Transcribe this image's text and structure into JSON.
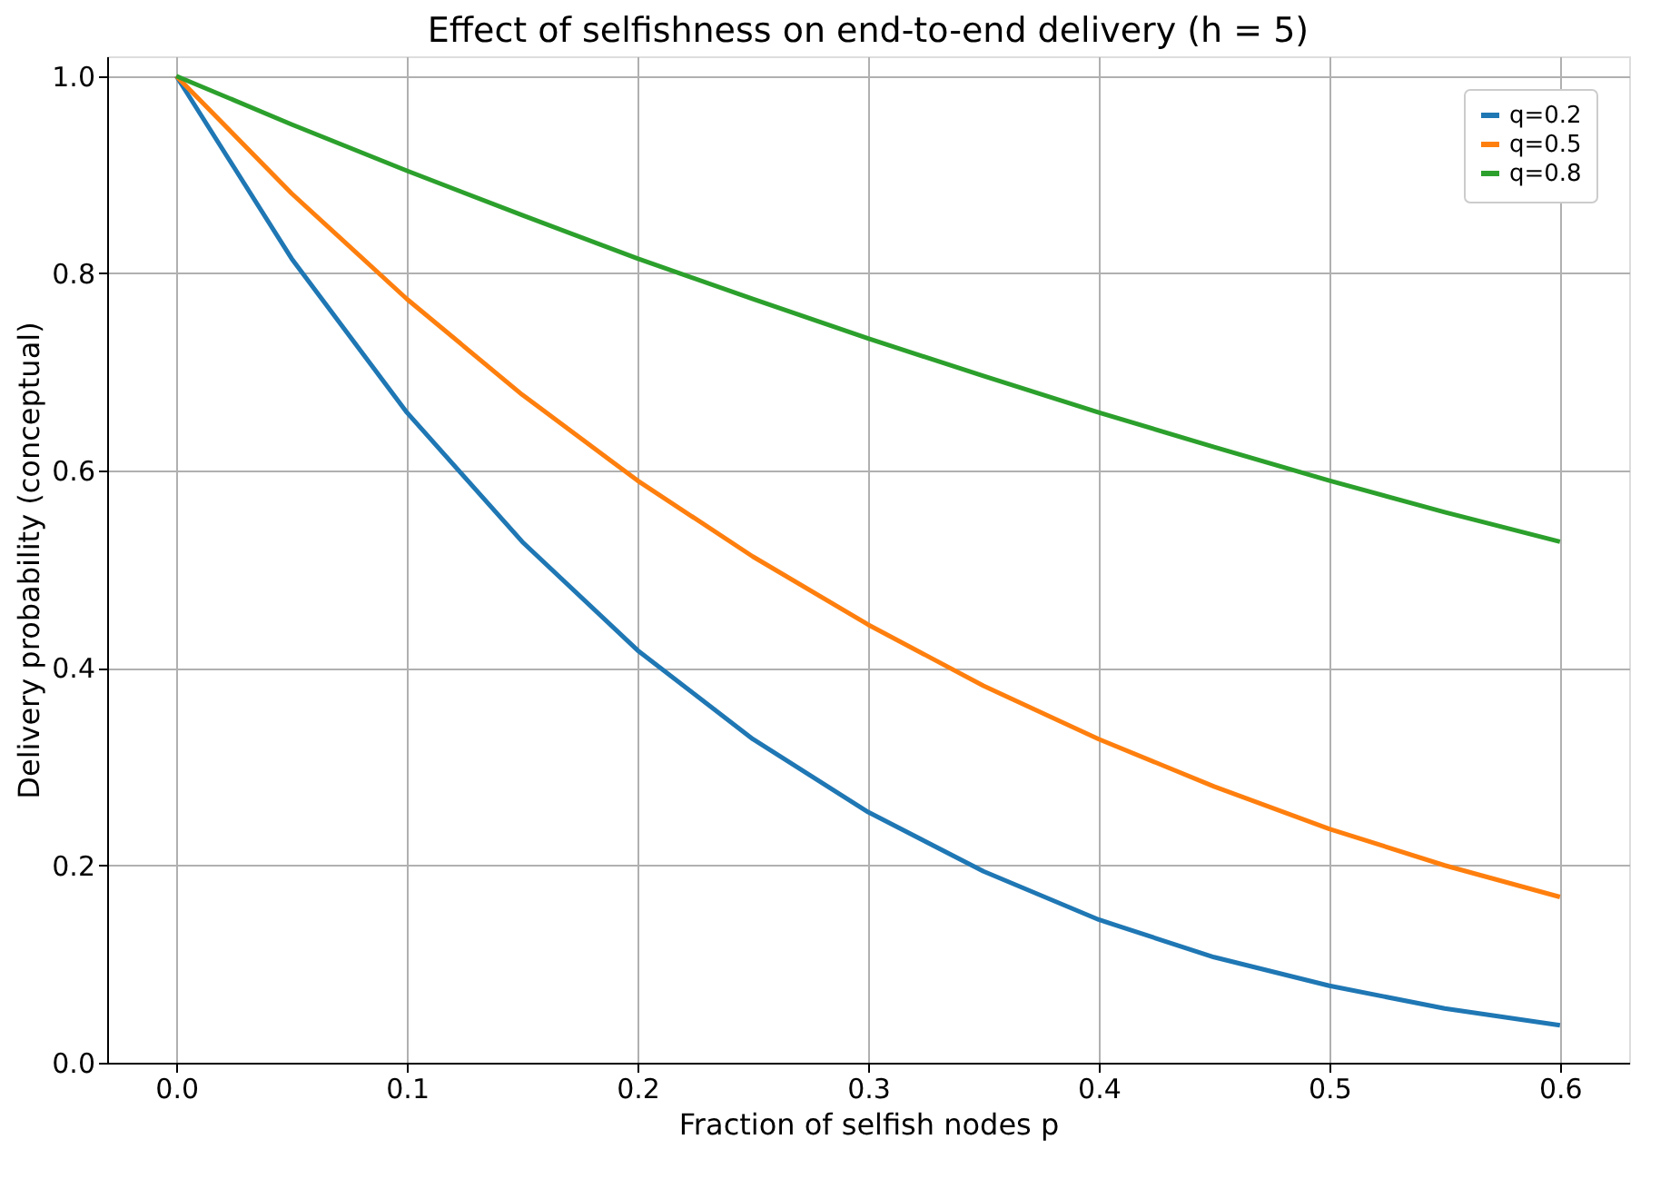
{
  "chart_data": {
    "type": "line",
    "title": "Effect of selfishness on end-to-end delivery (h = 5)",
    "xlabel": "Fraction of selfish nodes p",
    "ylabel": "Delivery probability (conceptual)",
    "x": [
      0,
      0.05,
      0.1,
      0.15,
      0.2,
      0.25,
      0.3,
      0.35,
      0.4,
      0.45,
      0.5,
      0.55,
      0.6
    ],
    "series": [
      {
        "name": "q=0.2",
        "color": "#1f77b4",
        "values": [
          1,
          0.815,
          0.659,
          0.528,
          0.418,
          0.328,
          0.254,
          0.194,
          0.145,
          0.107,
          0.078,
          0.055,
          0.038
        ]
      },
      {
        "name": "q=0.5",
        "color": "#ff7f0e",
        "values": [
          1,
          0.881,
          0.774,
          0.677,
          0.59,
          0.513,
          0.444,
          0.382,
          0.328,
          0.28,
          0.237,
          0.2,
          0.168
        ]
      },
      {
        "name": "q=0.8",
        "color": "#2ca02c",
        "values": [
          1,
          0.951,
          0.904,
          0.859,
          0.815,
          0.774,
          0.734,
          0.696,
          0.659,
          0.624,
          0.59,
          0.558,
          0.528
        ]
      }
    ],
    "xlim": [
      -0.03,
      0.63
    ],
    "ylim": [
      0,
      1.02
    ],
    "xticks": [
      {
        "value": 0,
        "label": "0.0"
      },
      {
        "value": 0.1,
        "label": "0.1"
      },
      {
        "value": 0.2,
        "label": "0.2"
      },
      {
        "value": 0.3,
        "label": "0.3"
      },
      {
        "value": 0.4,
        "label": "0.4"
      },
      {
        "value": 0.5,
        "label": "0.5"
      },
      {
        "value": 0.6,
        "label": "0.6"
      }
    ],
    "yticks": [
      {
        "value": 0,
        "label": "0.0"
      },
      {
        "value": 0.2,
        "label": "0.2"
      },
      {
        "value": 0.4,
        "label": "0.4"
      },
      {
        "value": 0.6,
        "label": "0.6"
      },
      {
        "value": 0.8,
        "label": "0.8"
      },
      {
        "value": 1,
        "label": "1.0"
      }
    ],
    "grid": true,
    "legend": "top right",
    "marker": "none",
    "line_style": "solid"
  }
}
